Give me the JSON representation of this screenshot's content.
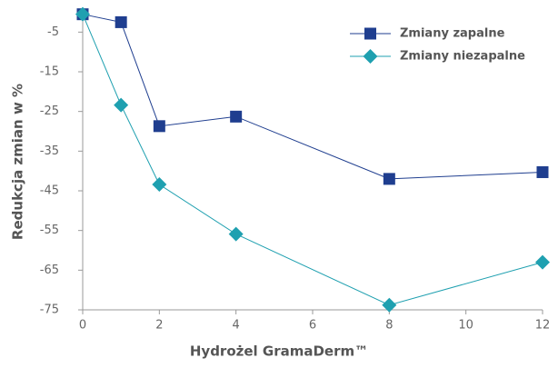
{
  "chart_data": {
    "type": "line",
    "xlabel": "Hydrożel GramaDerm™",
    "ylabel": "Redukcja zmian w %",
    "xlim": [
      0,
      12
    ],
    "xticks": [
      0,
      2,
      4,
      6,
      8,
      10,
      12
    ],
    "ylim": [
      -75,
      0
    ],
    "yticks": [
      -5,
      -15,
      -25,
      -35,
      -45,
      -55,
      -65,
      -75
    ],
    "grid": false,
    "legend": "upper right",
    "series": [
      {
        "name": "Zmiany zapalne",
        "color": "#1f3e8f",
        "marker": "square",
        "x": [
          0,
          1,
          2,
          4,
          8,
          12
        ],
        "values": [
          -0.5,
          -2.5,
          -28.7,
          -26.3,
          -42,
          -40.3
        ]
      },
      {
        "name": "Zmiany niezapalne",
        "color": "#1fa0b0",
        "marker": "diamond",
        "x": [
          0,
          1,
          2,
          4,
          8,
          12
        ],
        "values": [
          -0.5,
          -23.4,
          -43.4,
          -55.9,
          -73.8,
          -63
        ]
      }
    ]
  }
}
